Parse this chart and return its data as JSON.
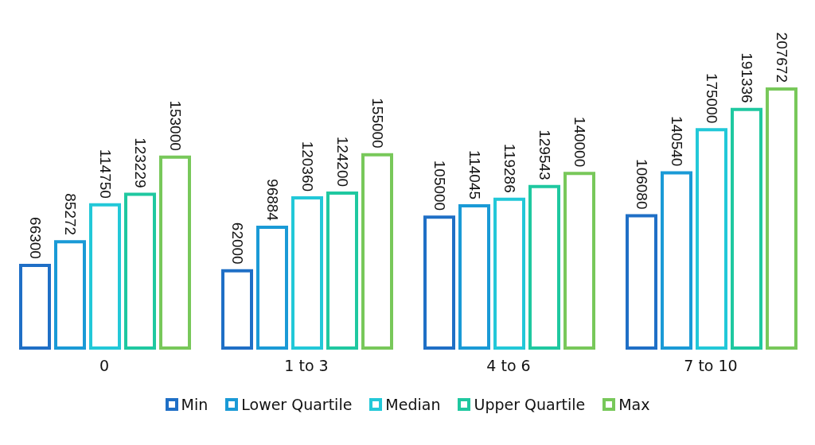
{
  "chart_data": {
    "type": "bar",
    "categories": [
      "0",
      "1 to 3",
      "4 to 6",
      "7 to 10"
    ],
    "series": [
      {
        "name": "Min",
        "color": "#1f6fc6",
        "values": [
          66300,
          62000,
          105000,
          106080
        ]
      },
      {
        "name": "Lower Quartile",
        "color": "#1a9ad6",
        "values": [
          85272,
          96884,
          114045,
          140540
        ]
      },
      {
        "name": "Median",
        "color": "#22c8d8",
        "values": [
          114750,
          120360,
          119286,
          175000
        ]
      },
      {
        "name": "Upper Quartile",
        "color": "#1fc8a0",
        "values": [
          123229,
          124200,
          129543,
          191336
        ]
      },
      {
        "name": "Max",
        "color": "#78c85a",
        "values": [
          153000,
          155000,
          140000,
          207672
        ]
      }
    ],
    "data_labels": true,
    "legend": "bottom"
  }
}
